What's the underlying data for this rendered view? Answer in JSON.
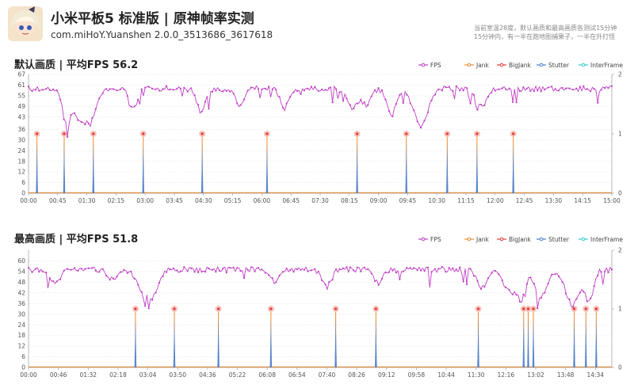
{
  "header": {
    "title": "小米平板5 标准版 | 原神帧率实测",
    "subtitle": "com.miHoY.Yuanshen 2.0.0_3513686_3617618",
    "note_lines": [
      "当前室温28度，默认画质和最高画质各测试15分钟",
      "15分钟内，有一半在跑地图捕果子，一半在外打怪"
    ]
  },
  "colors": {
    "fps": "#c03ec6",
    "jank": "#f08a2c",
    "bigjank": "#e53935",
    "stutter": "#4a7fd0",
    "interframe": "#34cbd6"
  },
  "chart_data": [
    {
      "type": "line",
      "title": "默认画质 | 平均FPS 56.2",
      "legend": [
        "FPS",
        "Jank",
        "BigJank",
        "Stutter",
        "InterFrame"
      ],
      "legend_position": "top-right",
      "x_tick_labels": [
        "00:00",
        "00:45",
        "01:30",
        "02:15",
        "03:00",
        "03:45",
        "04:30",
        "05:15",
        "06:00",
        "06:45",
        "07:30",
        "08:15",
        "09:00",
        "09:45",
        "10:30",
        "11:15",
        "12:00",
        "12:45",
        "13:30",
        "14:15",
        "15:00"
      ],
      "x_range_seconds": [
        0,
        900
      ],
      "y_left_ticks": [
        0,
        6,
        12,
        18,
        24,
        30,
        36,
        43,
        49,
        55,
        61,
        67
      ],
      "y_left_range": [
        0,
        67
      ],
      "y_right_ticks": [
        0,
        1,
        2
      ],
      "y_right_range": [
        0,
        2
      ],
      "fps_baseline": 59,
      "fps_dips": [
        [
          35,
          59,
          51
        ],
        [
          37,
          84,
          47
        ],
        [
          38,
          86,
          47
        ],
        [
          41,
          96,
          52
        ],
        [
          45,
          161,
          51
        ],
        [
          44,
          266,
          51
        ],
        [
          47,
          326,
          51
        ],
        [
          46,
          395,
          51
        ],
        [
          47,
          500,
          54
        ],
        [
          48,
          520,
          53
        ],
        [
          41,
          560,
          52
        ],
        [
          34,
          605,
          37
        ],
        [
          48,
          700,
          53
        ]
      ],
      "jank_events_seconds": [
        13,
        55,
        100,
        177,
        268,
        368,
        507,
        583,
        646,
        692,
        748
      ],
      "grid": true
    },
    {
      "type": "line",
      "title": "最高画质 | 平均FPS 51.8",
      "legend": [
        "FPS",
        "Jank",
        "BigJank",
        "Stutter",
        "InterFrame"
      ],
      "legend_position": "top-right",
      "x_tick_labels": [
        "00:00",
        "00:46",
        "01:32",
        "02:18",
        "03:04",
        "03:50",
        "04:36",
        "05:22",
        "06:08",
        "06:54",
        "07:40",
        "08:26",
        "09:12",
        "09:58",
        "10:44",
        "11:30",
        "12:16",
        "13:02",
        "13:48",
        "14:34"
      ],
      "x_range_seconds": [
        0,
        900
      ],
      "y_left_ticks": [
        0,
        6,
        12,
        18,
        24,
        30,
        36,
        42,
        48,
        54,
        60
      ],
      "y_left_range": [
        0,
        66
      ],
      "y_right_ticks": [
        0,
        1,
        2
      ],
      "y_right_range": [
        0,
        2
      ],
      "fps_baseline": 55,
      "fps_dips": [
        [
          46,
          40,
          54
        ],
        [
          48,
          130,
          52
        ],
        [
          40,
          180,
          37
        ],
        [
          38,
          190,
          36
        ],
        [
          48,
          380,
          53
        ],
        [
          44,
          460,
          52
        ],
        [
          46,
          540,
          51
        ],
        [
          44,
          700,
          53
        ],
        [
          40,
          745,
          48
        ],
        [
          36,
          760,
          31
        ],
        [
          38,
          790,
          46
        ],
        [
          32,
          840,
          38
        ],
        [
          34,
          865,
          41
        ]
      ],
      "jank_events_seconds": [
        165,
        225,
        293,
        374,
        474,
        536,
        694,
        764,
        771,
        779,
        842,
        860,
        876
      ],
      "grid": true
    }
  ]
}
